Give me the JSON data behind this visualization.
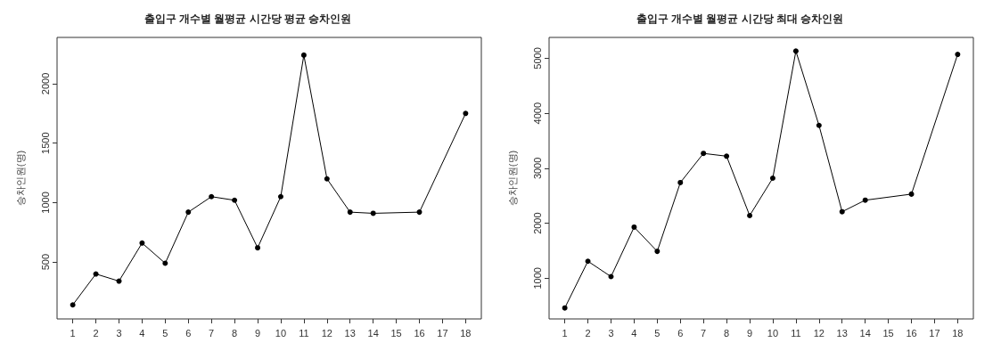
{
  "chart_data": [
    {
      "type": "line",
      "title": "출입구 개수별 월평균 시간당 평균 승차인원",
      "ylabel": "승차인원(명)",
      "x": [
        1,
        2,
        3,
        4,
        5,
        6,
        7,
        8,
        9,
        10,
        11,
        12,
        13,
        14,
        16,
        18
      ],
      "series": [
        {
          "color": "#000000",
          "values": [
            140,
            400,
            340,
            660,
            490,
            920,
            1050,
            1020,
            620,
            1050,
            2240,
            1200,
            920,
            910,
            920,
            1750
          ]
        }
      ],
      "xlim": [
        0.32,
        18.68
      ],
      "xticks": [
        1,
        2,
        3,
        4,
        5,
        6,
        7,
        8,
        9,
        10,
        11,
        12,
        13,
        14,
        15,
        16,
        17,
        18
      ],
      "ylim": [
        22,
        2389
      ],
      "yticks": [
        500,
        1000,
        1500,
        2000
      ],
      "grid": false,
      "marker": "circle",
      "line_style": "solid"
    },
    {
      "type": "line",
      "title": "출입구 개수별 월평균 시간당 최대 승차인원",
      "ylabel": "승차인원(명)",
      "x": [
        1,
        2,
        3,
        4,
        5,
        6,
        7,
        8,
        9,
        10,
        11,
        12,
        13,
        14,
        16,
        18
      ],
      "series": [
        {
          "color": "#000000",
          "values": [
            460,
            1310,
            1030,
            1930,
            1490,
            2740,
            3270,
            3220,
            2140,
            2820,
            5130,
            3780,
            2210,
            2420,
            2530,
            5070
          ]
        }
      ],
      "xlim": [
        0.32,
        18.68
      ],
      "xticks": [
        1,
        2,
        3,
        4,
        5,
        6,
        7,
        8,
        9,
        10,
        11,
        12,
        13,
        14,
        15,
        16,
        17,
        18
      ],
      "ylim": [
        261,
        5379
      ],
      "yticks": [
        1000,
        2000,
        3000,
        4000,
        5000
      ],
      "grid": false,
      "marker": "circle",
      "line_style": "solid"
    }
  ]
}
